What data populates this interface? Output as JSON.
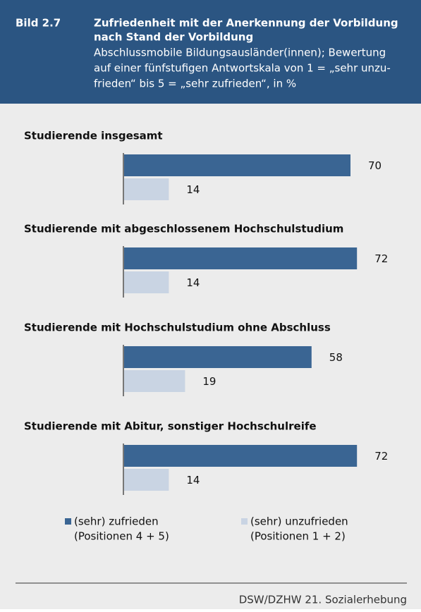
{
  "chart_data": {
    "type": "bar",
    "orientation": "horizontal",
    "figure_label": "Bild 2.7",
    "title_lines": [
      "Zufriedenheit mit der Anerkennung der Vorbildung",
      "nach Stand der Vorbildung"
    ],
    "subtitle_lines": [
      "Abschlussmobile Bildungsausländer(innen); Bewertung",
      "auf einer fünfstufigen Antwortskala von 1 = „sehr unzu-",
      "frieden“ bis 5 = „sehr zufrieden“, in %"
    ],
    "categories": [
      "Studierende insgesamt",
      "Studierende mit abgeschlossenem Hochschulstudium",
      "Studierende mit Hochschulstudium ohne Abschluss",
      "Studierende mit Abitur, sonstiger Hochschulreife"
    ],
    "series": [
      {
        "name": "(sehr) zufrieden",
        "sublabel": "(Positionen 4 + 5)",
        "color": "#3a6593",
        "values": [
          70,
          72,
          58,
          72
        ]
      },
      {
        "name": "(sehr) unzufrieden",
        "sublabel": "(Positionen 1 + 2)",
        "color": "#c9d4e3",
        "values": [
          14,
          14,
          19,
          14
        ]
      }
    ],
    "xlim": [
      0,
      100
    ],
    "source": "DSW/DZHW 21. Sozialerhebung"
  }
}
